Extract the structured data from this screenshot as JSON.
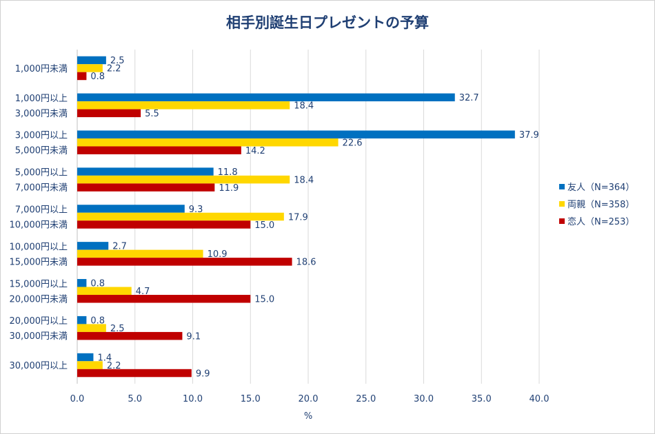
{
  "chart_data": {
    "type": "bar",
    "orientation": "horizontal",
    "title": "相手別誕生日プレゼントの予算",
    "xlabel": "%",
    "ylabel": "",
    "xlim": [
      0,
      40
    ],
    "xticks": [
      "0.0",
      "5.0",
      "10.0",
      "15.0",
      "20.0",
      "25.0",
      "30.0",
      "35.0",
      "40.0"
    ],
    "grid": true,
    "legend_position": "right",
    "categories": [
      [
        "1,000円未満"
      ],
      [
        "1,000円以上",
        "3,000円未満"
      ],
      [
        "3,000円以上",
        "5,000円未満"
      ],
      [
        "5,000円以上",
        "7,000円未満"
      ],
      [
        "7,000円以上",
        "10,000円未満"
      ],
      [
        "10,000円以上",
        "15,000円未満"
      ],
      [
        "15,000円以上",
        "20,000円未満"
      ],
      [
        "20,000円以上",
        "30,000円未満"
      ],
      [
        "30,000円以上"
      ]
    ],
    "series": [
      {
        "name": "友人（N=364）",
        "color": "#0070c0",
        "values": [
          2.5,
          32.7,
          37.9,
          11.8,
          9.3,
          2.7,
          0.8,
          0.8,
          1.4
        ],
        "labels": [
          "2.5",
          "32.7",
          "37.9",
          "11.8",
          "9.3",
          "2.7",
          "0.8",
          "0.8",
          "1.4"
        ]
      },
      {
        "name": "両親（N=358）",
        "color": "#ffd700",
        "values": [
          2.2,
          18.4,
          22.6,
          18.4,
          17.9,
          10.9,
          4.7,
          2.5,
          2.2
        ],
        "labels": [
          "2.2",
          "18.4",
          "22.6",
          "18.4",
          "17.9",
          "10.9",
          "4.7",
          "2.5",
          "2.2"
        ]
      },
      {
        "name": "恋人（N=253）",
        "color": "#c00000",
        "values": [
          0.8,
          5.5,
          14.2,
          11.9,
          15.0,
          18.6,
          15.0,
          9.1,
          9.9
        ],
        "labels": [
          "0.8",
          "5.5",
          "14.2",
          "11.9",
          "15.0",
          "18.6",
          "15.0",
          "9.1",
          "9.9"
        ]
      }
    ]
  }
}
